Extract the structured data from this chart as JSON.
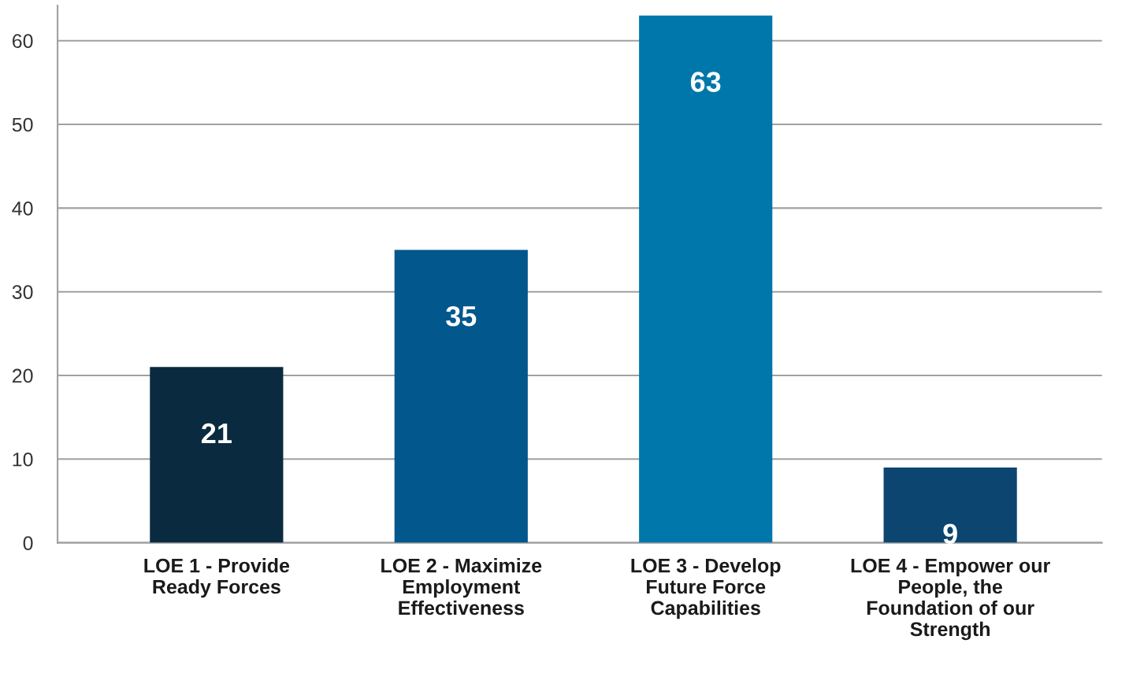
{
  "chart_data": {
    "type": "bar",
    "categories": [
      "LOE 1 - Provide Ready Forces",
      "LOE 2 - Maximize Employment Effectiveness",
      "LOE 3 - Develop Future Force Capabilities",
      "LOE 4 - Empower our People, the Foundation of our Strength"
    ],
    "values": [
      21,
      35,
      63,
      9
    ],
    "colors": [
      "#0a2a40",
      "#02578c",
      "#0077aa",
      "#0b4570"
    ],
    "ylim": [
      0,
      64.2
    ],
    "yticks": [
      0,
      10,
      20,
      30,
      40,
      50,
      60
    ],
    "grid": "y",
    "data_labels": true
  }
}
